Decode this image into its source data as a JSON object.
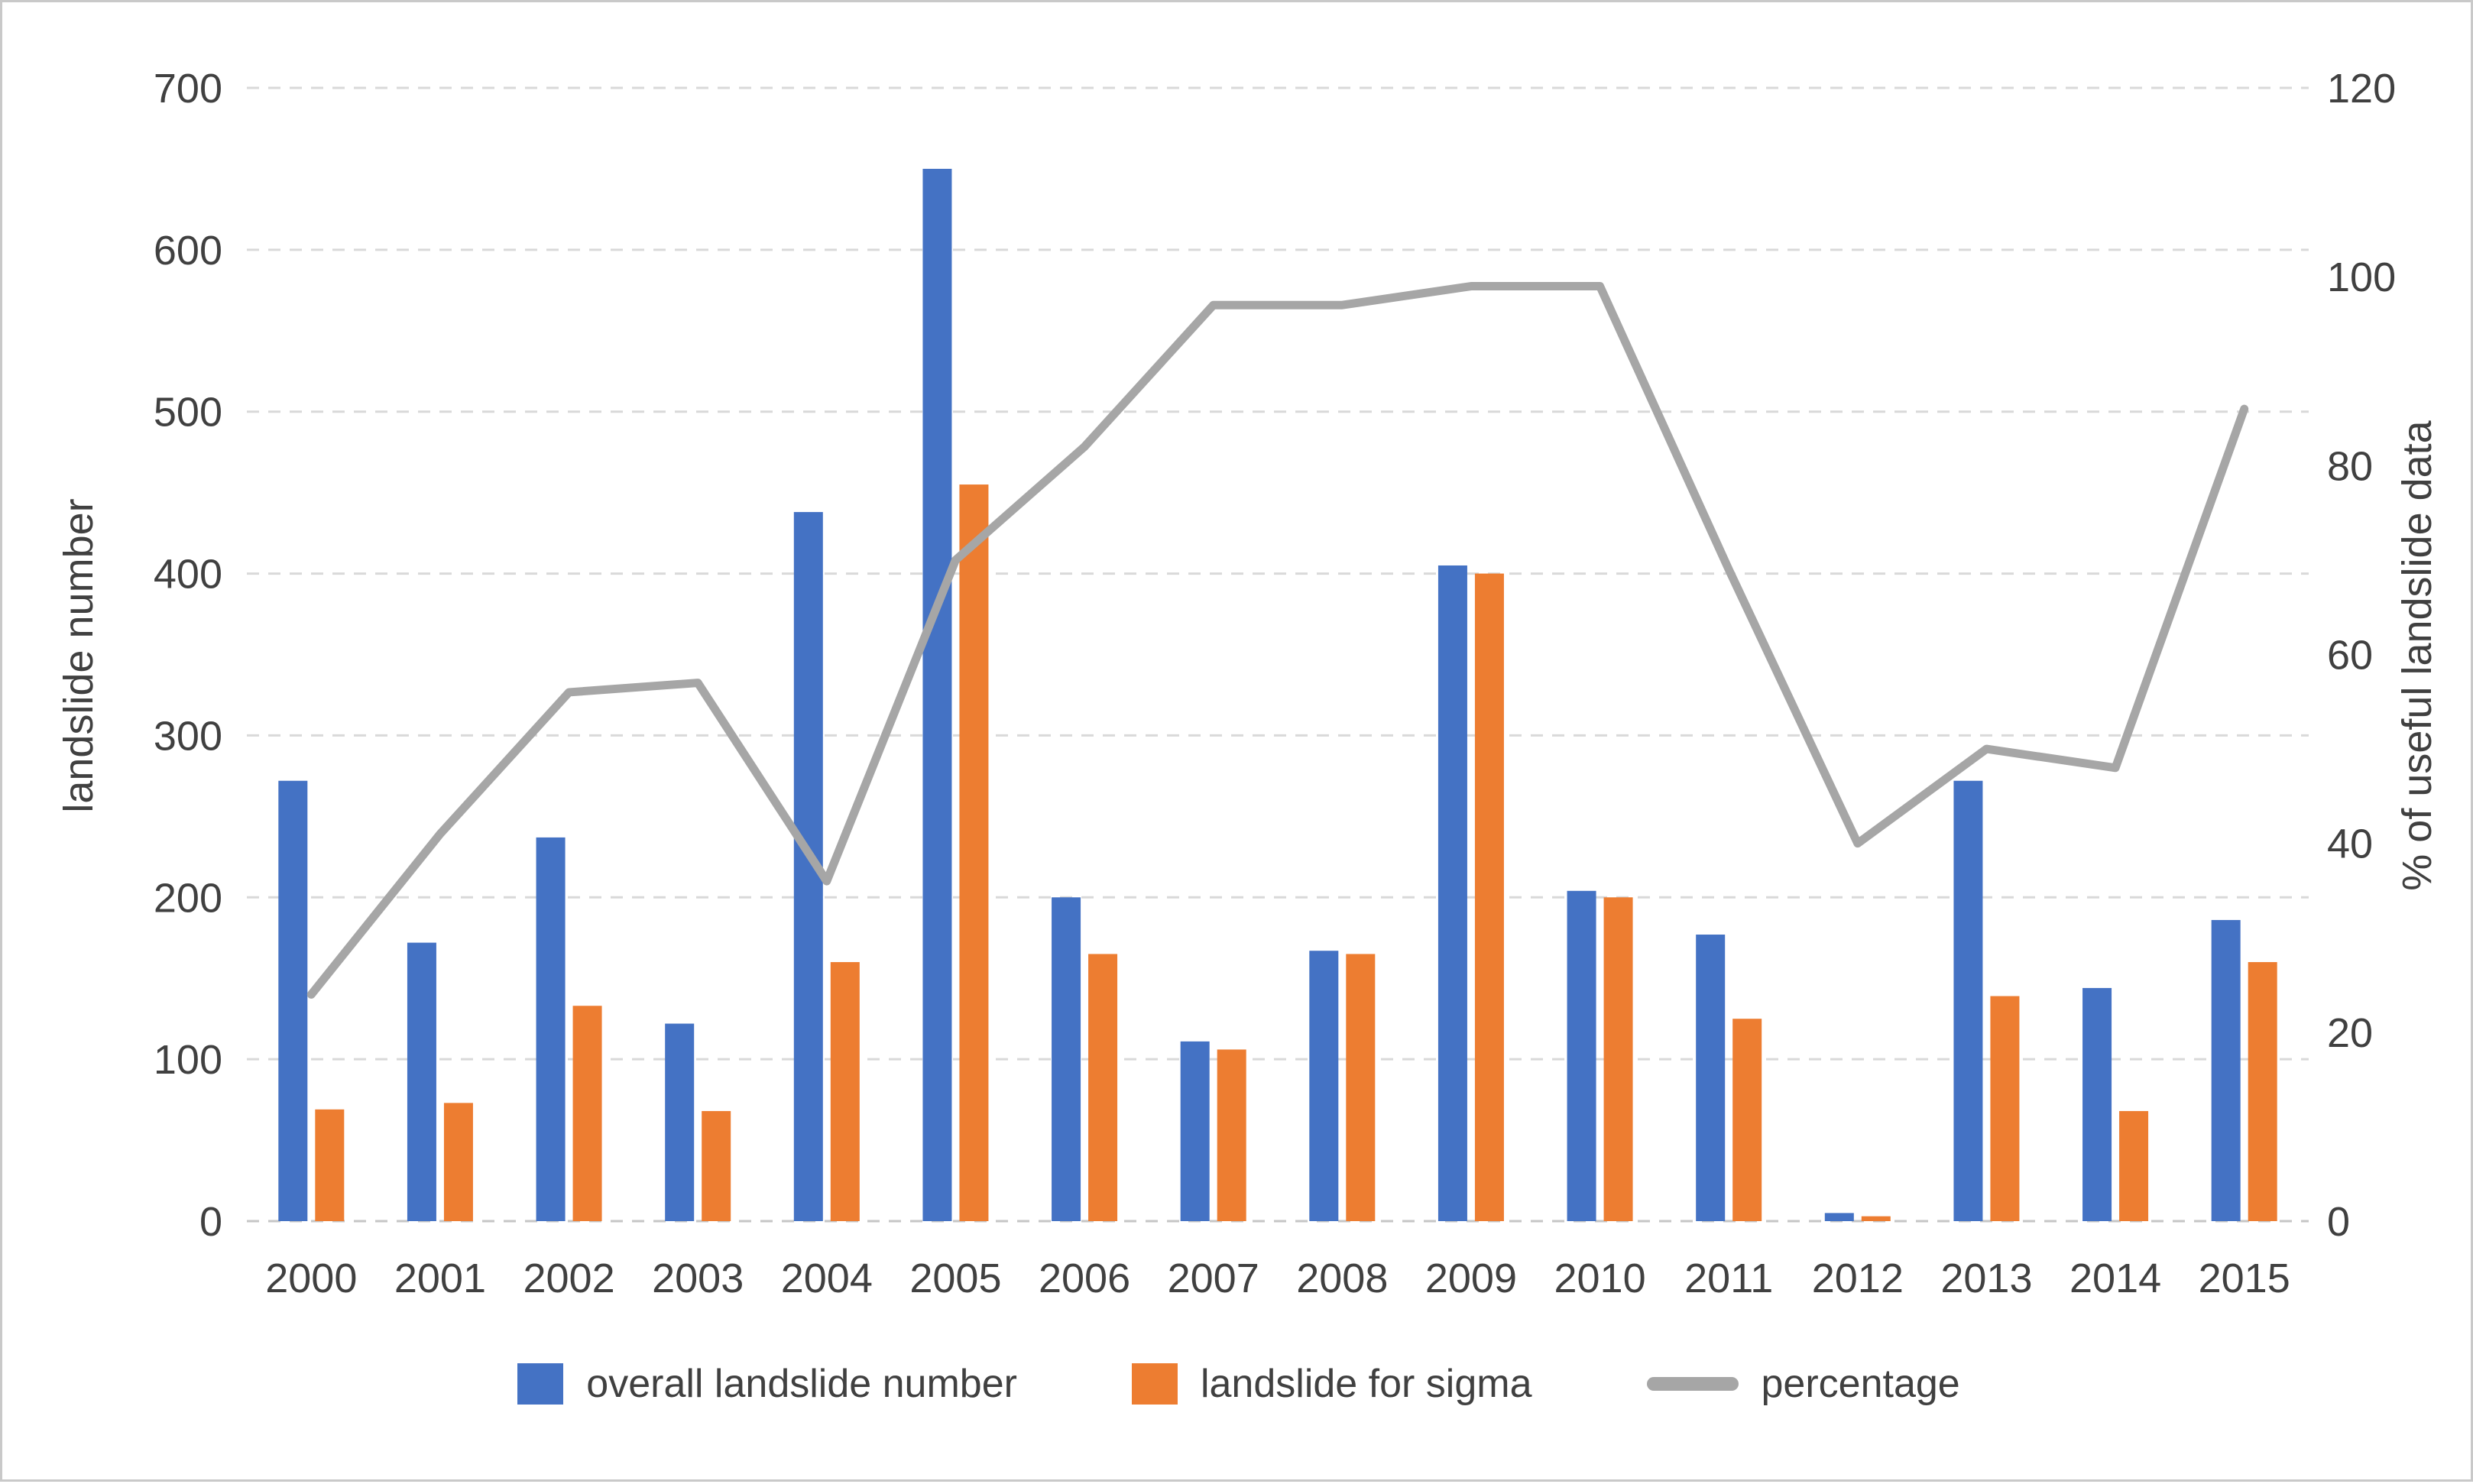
{
  "chart_data": {
    "type": "bar",
    "subtype": "combo-bar-line",
    "categories": [
      "2000",
      "2001",
      "2002",
      "2003",
      "2004",
      "2005",
      "2006",
      "2007",
      "2008",
      "2009",
      "2010",
      "2011",
      "2012",
      "2013",
      "2014",
      "2015"
    ],
    "series": [
      {
        "name": "overall landslide number",
        "type": "bar",
        "axis": "left",
        "color": "#4472C4",
        "values": [
          272,
          172,
          237,
          122,
          438,
          650,
          200,
          111,
          167,
          405,
          204,
          177,
          5,
          272,
          144,
          186
        ]
      },
      {
        "name": "landslide for sigma",
        "type": "bar",
        "axis": "left",
        "color": "#ED7D31",
        "values": [
          69,
          73,
          133,
          68,
          160,
          455,
          165,
          106,
          165,
          400,
          200,
          125,
          3,
          139,
          68,
          160
        ]
      },
      {
        "name": "percentage",
        "type": "line",
        "axis": "right",
        "color": "#A6A6A6",
        "values": [
          24,
          41,
          56,
          57,
          36,
          70,
          82,
          97,
          97,
          99,
          99,
          69,
          40,
          50,
          48,
          86
        ]
      }
    ],
    "left_axis": {
      "title": "landslide number",
      "min": 0,
      "max": 700,
      "ticks": [
        0,
        100,
        200,
        300,
        400,
        500,
        600,
        700
      ]
    },
    "right_axis": {
      "title": "% of useful landslide data",
      "min": 0,
      "max": 120,
      "ticks": [
        0,
        20,
        40,
        60,
        80,
        100,
        120
      ]
    },
    "xlabel": "",
    "ylabel": "landslide number",
    "legend_position": "bottom",
    "grid": "horizontal dashed"
  },
  "colors": {
    "bar_blue": "#4472C4",
    "bar_orange": "#ED7D31",
    "line_gray": "#A6A6A6",
    "gridline": "#D9D9D9",
    "axis_line": "#C6C6C6",
    "text": "#404040",
    "frame_border": "#C9C9C9"
  }
}
